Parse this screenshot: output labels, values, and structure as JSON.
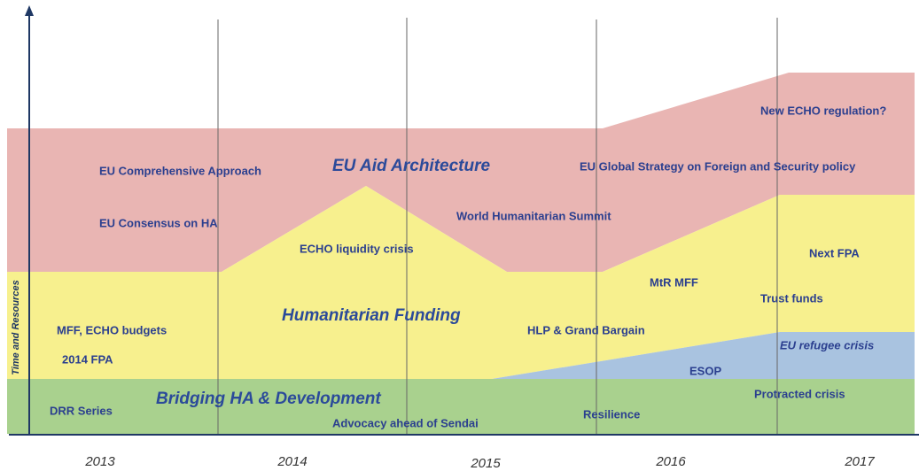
{
  "axis_label": "Time and Resources",
  "years": [
    "2013",
    "2014",
    "2015",
    "2016",
    "2017"
  ],
  "bands": {
    "architecture": "EU Aid Architecture",
    "funding": "Humanitarian Funding",
    "bridging": "Bridging HA & Development"
  },
  "items": [
    "EU Comprehensive Approach",
    "EU Consensus on HA",
    "ECHO liquidity crisis",
    "World Humanitarian Summit",
    "EU Global Strategy on Foreign and Security policy",
    "New ECHO regulation?",
    "Next FPA",
    "MtR MFF",
    "Trust funds",
    "MFF, ECHO budgets",
    "2014 FPA",
    "HLP & Grand Bargain",
    "EU refugee crisis",
    "ESOP",
    "Protracted crisis",
    "DRR Series",
    "Advocacy ahead of Sendai",
    "Resilience"
  ]
}
